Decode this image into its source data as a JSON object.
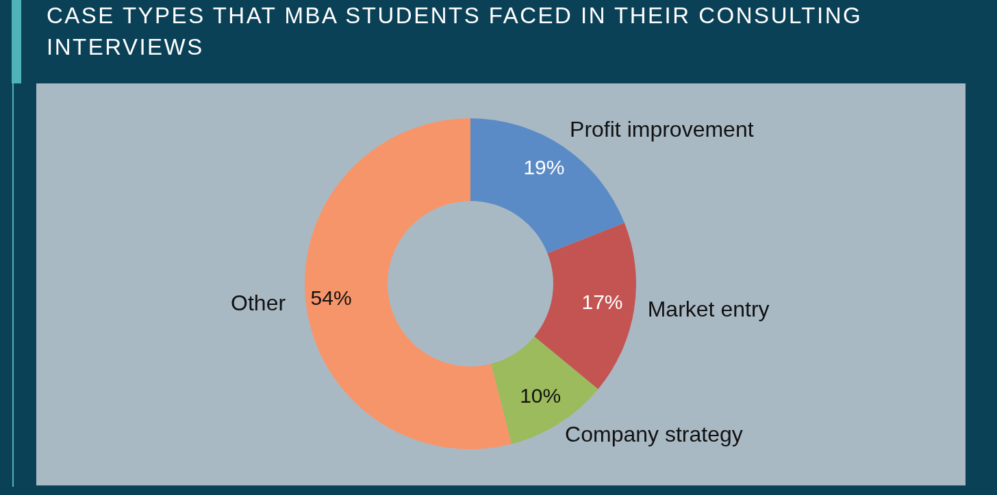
{
  "chart_data": {
    "type": "donut",
    "title": "CASE TYPES THAT MBA STUDENTS FACED IN THEIR CONSULTING INTERVIEWS",
    "categories": [
      "Profit improvement",
      "Market entry",
      "Company strategy",
      "Other"
    ],
    "values": [
      19,
      17,
      10,
      54
    ],
    "value_labels": [
      "19%",
      "17%",
      "10%",
      "54%"
    ],
    "colors": [
      "#5b8bc6",
      "#c45452",
      "#9bbb5c",
      "#f7956a"
    ]
  }
}
